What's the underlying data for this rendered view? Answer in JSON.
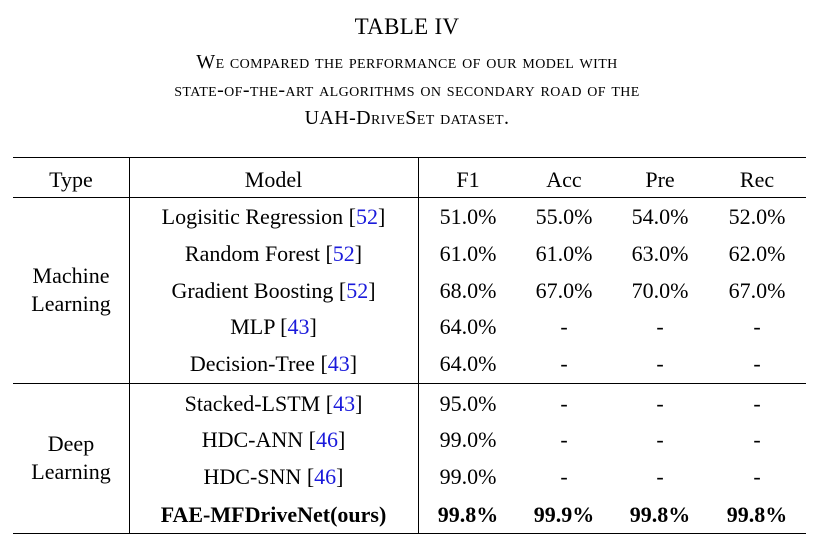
{
  "caption": {
    "table_number": "TABLE IV",
    "line1": "We compared the performance of our model with",
    "line2": "state-of-the-art algorithms on secondary road of the",
    "line3": "UAH-DriveSet dataset."
  },
  "headers": [
    "Type",
    "Model",
    "F1",
    "Acc",
    "Pre",
    "Rec"
  ],
  "groups": [
    {
      "type_line1": "Machine",
      "type_line2": "Learning"
    },
    {
      "type_line1": "Deep",
      "type_line2": "Learning"
    }
  ],
  "rows": [
    {
      "model": "Logisitic Regression",
      "ref": "52",
      "f1": "51.0%",
      "acc": "55.0%",
      "pre": "54.0%",
      "rec": "52.0%"
    },
    {
      "model": "Random Forest",
      "ref": "52",
      "f1": "61.0%",
      "acc": "61.0%",
      "pre": "63.0%",
      "rec": "62.0%"
    },
    {
      "model": "Gradient Boosting",
      "ref": "52",
      "f1": "68.0%",
      "acc": "67.0%",
      "pre": "70.0%",
      "rec": "67.0%"
    },
    {
      "model": "MLP",
      "ref": "43",
      "f1": "64.0%",
      "acc": "-",
      "pre": "-",
      "rec": "-"
    },
    {
      "model": "Decision-Tree",
      "ref": "43",
      "f1": "64.0%",
      "acc": "-",
      "pre": "-",
      "rec": "-"
    },
    {
      "model": "Stacked-LSTM",
      "ref": "43",
      "f1": "95.0%",
      "acc": "-",
      "pre": "-",
      "rec": "-"
    },
    {
      "model": "HDC-ANN",
      "ref": "46",
      "f1": "99.0%",
      "acc": "-",
      "pre": "-",
      "rec": "-"
    },
    {
      "model": "HDC-SNN",
      "ref": "46",
      "f1": "99.0%",
      "acc": "-",
      "pre": "-",
      "rec": "-"
    },
    {
      "model": "FAE-MFDriveNet(ours)",
      "ref": "",
      "f1": "99.8%",
      "acc": "99.9%",
      "pre": "99.8%",
      "rec": "99.8%"
    }
  ]
}
